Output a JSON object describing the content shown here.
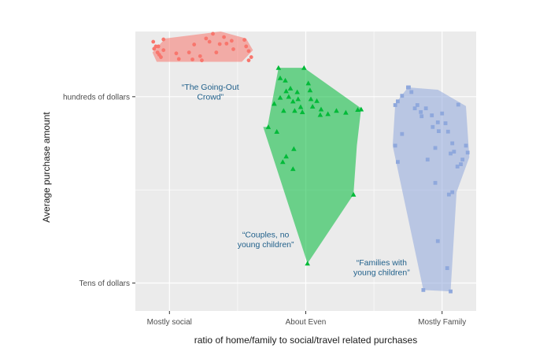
{
  "chart_data": {
    "type": "scatter",
    "title": "",
    "xlabel": "ratio of home/family to social/travel related purchases",
    "ylabel": "Average purchase amount",
    "xlim": [
      0.0,
      4.0
    ],
    "ylim": [
      0.0,
      6.0
    ],
    "grid": true,
    "legend": "none",
    "background": "#ebebeb",
    "x_ticks": [
      {
        "value": 0.4,
        "label": "Mostly social"
      },
      {
        "value": 2.0,
        "label": "About Even"
      },
      {
        "value": 3.6,
        "label": "Mostly Family"
      }
    ],
    "y_ticks": [
      {
        "value": 0.6,
        "label": "Tens of dollars"
      },
      {
        "value": 4.6,
        "label": "hundreds of dollars"
      }
    ],
    "x_minor": [
      1.2,
      2.8
    ],
    "y_minor": [
      2.6
    ],
    "series": [
      {
        "color": "#f8766d",
        "marker": "circle",
        "hull": [
          [
            0.2,
            5.55
          ],
          [
            0.35,
            5.85
          ],
          [
            1.0,
            6.0
          ],
          [
            1.3,
            5.85
          ],
          [
            1.38,
            5.6
          ],
          [
            1.25,
            5.35
          ],
          [
            0.25,
            5.35
          ]
        ],
        "points": [
          [
            0.21,
            5.78
          ],
          [
            0.24,
            5.68
          ],
          [
            0.22,
            5.63
          ],
          [
            0.26,
            5.55
          ],
          [
            0.28,
            5.5
          ],
          [
            0.3,
            5.45
          ],
          [
            0.33,
            5.6
          ],
          [
            0.27,
            5.68
          ],
          [
            0.33,
            5.83
          ],
          [
            0.48,
            5.53
          ],
          [
            0.51,
            5.41
          ],
          [
            0.63,
            5.55
          ],
          [
            0.67,
            5.4
          ],
          [
            0.69,
            5.72
          ],
          [
            0.76,
            5.47
          ],
          [
            0.78,
            5.38
          ],
          [
            0.83,
            5.85
          ],
          [
            0.87,
            5.78
          ],
          [
            0.95,
            5.55
          ],
          [
            0.99,
            5.73
          ],
          [
            0.91,
            5.95
          ],
          [
            1.04,
            5.88
          ],
          [
            1.07,
            5.74
          ],
          [
            1.13,
            5.8
          ],
          [
            1.15,
            5.62
          ],
          [
            1.28,
            5.82
          ],
          [
            1.33,
            5.58
          ],
          [
            1.36,
            5.45
          ],
          [
            1.33,
            5.38
          ],
          [
            1.3,
            5.68
          ]
        ]
      },
      {
        "color": "#00ba38",
        "marker": "triangle",
        "hull": [
          [
            1.55,
            3.95
          ],
          [
            1.68,
            5.22
          ],
          [
            1.98,
            5.22
          ],
          [
            2.65,
            4.35
          ],
          [
            2.6,
            3.55
          ],
          [
            2.56,
            2.5
          ],
          [
            2.02,
            1.02
          ],
          [
            1.5,
            3.95
          ]
        ],
        "points": [
          [
            1.68,
            5.22
          ],
          [
            1.98,
            5.22
          ],
          [
            1.7,
            5.0
          ],
          [
            1.76,
            4.95
          ],
          [
            1.77,
            4.72
          ],
          [
            1.8,
            4.6
          ],
          [
            1.82,
            4.78
          ],
          [
            1.7,
            4.58
          ],
          [
            1.63,
            4.45
          ],
          [
            1.74,
            4.3
          ],
          [
            1.85,
            4.5
          ],
          [
            1.9,
            4.7
          ],
          [
            1.91,
            4.55
          ],
          [
            1.94,
            4.38
          ],
          [
            1.87,
            4.3
          ],
          [
            1.96,
            4.27
          ],
          [
            2.03,
            4.89
          ],
          [
            2.05,
            4.74
          ],
          [
            2.06,
            4.55
          ],
          [
            2.08,
            4.39
          ],
          [
            2.13,
            4.51
          ],
          [
            2.18,
            4.33
          ],
          [
            2.26,
            4.23
          ],
          [
            2.36,
            4.3
          ],
          [
            2.47,
            4.26
          ],
          [
            2.61,
            4.32
          ],
          [
            2.65,
            4.33
          ],
          [
            1.56,
            3.95
          ],
          [
            1.73,
            3.2
          ],
          [
            1.77,
            3.32
          ],
          [
            1.86,
            3.48
          ],
          [
            1.85,
            3.05
          ],
          [
            1.66,
            3.85
          ],
          [
            2.17,
            4.21
          ],
          [
            2.56,
            2.5
          ],
          [
            2.02,
            1.02
          ]
        ]
      },
      {
        "color": "#8fa8dc",
        "marker": "square",
        "hull": [
          [
            3.05,
            4.45
          ],
          [
            3.2,
            4.8
          ],
          [
            3.55,
            4.75
          ],
          [
            3.88,
            4.4
          ],
          [
            3.92,
            3.3
          ],
          [
            3.77,
            2.55
          ],
          [
            3.7,
            0.42
          ],
          [
            3.38,
            0.45
          ],
          [
            3.02,
            3.55
          ]
        ],
        "points": [
          [
            3.05,
            4.42
          ],
          [
            3.08,
            4.5
          ],
          [
            3.13,
            4.62
          ],
          [
            3.2,
            4.8
          ],
          [
            3.24,
            4.7
          ],
          [
            3.28,
            4.35
          ],
          [
            3.31,
            4.42
          ],
          [
            3.35,
            4.27
          ],
          [
            3.36,
            4.18
          ],
          [
            3.41,
            4.35
          ],
          [
            3.48,
            4.2
          ],
          [
            3.49,
            3.95
          ],
          [
            3.55,
            4.05
          ],
          [
            3.56,
            3.86
          ],
          [
            3.6,
            4.24
          ],
          [
            3.64,
            4.03
          ],
          [
            3.67,
            3.85
          ],
          [
            3.72,
            3.6
          ],
          [
            3.79,
            4.43
          ],
          [
            3.82,
            3.15
          ],
          [
            3.84,
            3.25
          ],
          [
            3.88,
            3.55
          ],
          [
            3.9,
            3.4
          ],
          [
            3.78,
            3.1
          ],
          [
            3.72,
            2.55
          ],
          [
            3.68,
            2.5
          ],
          [
            3.52,
            2.75
          ],
          [
            3.55,
            1.5
          ],
          [
            3.05,
            3.55
          ],
          [
            3.08,
            3.2
          ],
          [
            3.43,
            3.25
          ],
          [
            3.52,
            3.5
          ],
          [
            3.7,
            3.38
          ],
          [
            3.74,
            3.42
          ],
          [
            3.66,
            0.92
          ],
          [
            3.7,
            0.42
          ],
          [
            3.38,
            0.45
          ],
          [
            3.21,
            4.8
          ],
          [
            3.13,
            3.8
          ]
        ]
      }
    ],
    "annotations": [
      {
        "lines": [
          "“The Going-Out",
          "Crowd”"
        ],
        "x": 0.88,
        "y": 4.75,
        "color": "#1f5f8a"
      },
      {
        "lines": [
          "“Couples, no",
          "young children”"
        ],
        "x": 1.53,
        "y": 1.58,
        "color": "#1f5f8a"
      },
      {
        "lines": [
          "“Families with",
          "young children”"
        ],
        "x": 2.89,
        "y": 0.98,
        "color": "#1f5f8a"
      }
    ]
  }
}
